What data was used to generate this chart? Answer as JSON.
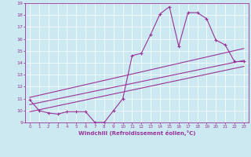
{
  "xlabel": "Windchill (Refroidissement éolien,°C)",
  "bg_color": "#cce8f0",
  "line_color": "#993399",
  "xlim": [
    -0.5,
    23.5
  ],
  "ylim": [
    9,
    19
  ],
  "xticks": [
    0,
    1,
    2,
    3,
    4,
    5,
    6,
    7,
    8,
    9,
    10,
    11,
    12,
    13,
    14,
    15,
    16,
    17,
    18,
    19,
    20,
    21,
    22,
    23
  ],
  "yticks": [
    9,
    10,
    11,
    12,
    13,
    14,
    15,
    16,
    17,
    18,
    19
  ],
  "main_x": [
    0,
    1,
    2,
    3,
    4,
    5,
    6,
    7,
    8,
    9,
    10,
    11,
    12,
    13,
    14,
    15,
    16,
    17,
    18,
    19,
    20,
    21,
    22,
    23
  ],
  "main_y": [
    10.9,
    10.0,
    9.8,
    9.7,
    9.9,
    9.9,
    9.9,
    9.0,
    9.0,
    10.0,
    11.0,
    14.6,
    14.8,
    16.4,
    18.1,
    18.7,
    15.4,
    18.2,
    18.2,
    17.7,
    15.9,
    15.5,
    14.1,
    14.1
  ],
  "line2_x": [
    0,
    23
  ],
  "line2_y": [
    10.5,
    14.2
  ],
  "line3_x": [
    0,
    23
  ],
  "line3_y": [
    11.1,
    15.2
  ],
  "line4_x": [
    0,
    23
  ],
  "line4_y": [
    9.9,
    13.7
  ]
}
